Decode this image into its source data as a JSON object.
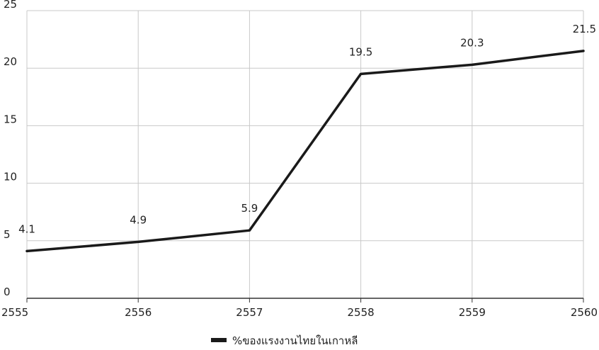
{
  "chart_data": {
    "type": "line",
    "title": "",
    "xlabel": "",
    "ylabel": "",
    "x": [
      "2555",
      "2556",
      "2557",
      "2558",
      "2559",
      "2560"
    ],
    "series": [
      {
        "name": "%ของแรงงานไทยในเกาหลี",
        "values": [
          4.1,
          4.9,
          5.9,
          19.5,
          20.3,
          21.5
        ],
        "labels": [
          "4.1",
          "4.9",
          "5.9",
          "19.5",
          "20.3",
          "21.5"
        ],
        "color": "#1a1a1a"
      }
    ],
    "ylim": [
      0,
      25
    ],
    "yticks": [
      "0",
      "5",
      "10",
      "15",
      "20",
      "25"
    ],
    "grid": true,
    "legend_position": "bottom-center"
  }
}
